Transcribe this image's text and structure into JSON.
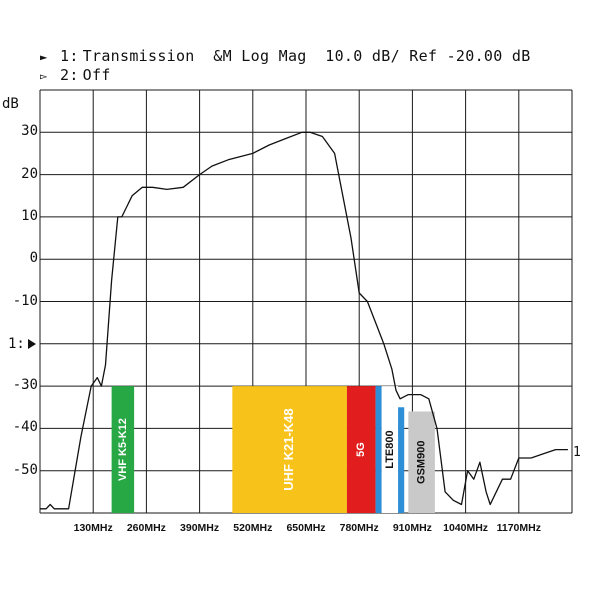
{
  "header": {
    "line1_marker": "►",
    "line1_channel": "1:",
    "line1_text": "Transmission  &M Log Mag  10.0 dB/ Ref -20.00 dB",
    "line2_marker": "▻",
    "line2_channel": "2:",
    "line2_text": "Off"
  },
  "ref_marker_label": "1:",
  "trace_end_label": "1",
  "chart_data": {
    "type": "line",
    "title": "",
    "xlabel": "",
    "ylabel": "dB",
    "xlim": [
      0,
      1300
    ],
    "ylim": [
      -60,
      40
    ],
    "grid": true,
    "y_ticks": [
      30,
      20,
      10,
      0,
      -10,
      -30,
      -40,
      -50
    ],
    "x_ticks": [
      {
        "value": 130,
        "label": "130MHz"
      },
      {
        "value": 260,
        "label": "260MHz"
      },
      {
        "value": 390,
        "label": "390MHz"
      },
      {
        "value": 520,
        "label": "520MHz"
      },
      {
        "value": 650,
        "label": "650MHz"
      },
      {
        "value": 780,
        "label": "780MHz"
      },
      {
        "value": 910,
        "label": "910MHz"
      },
      {
        "value": 1040,
        "label": "1040MHz"
      },
      {
        "value": 1170,
        "label": "1170MHz"
      }
    ],
    "series": [
      {
        "x": [
          0,
          15,
          25,
          35,
          50,
          70,
          100,
          125,
          140,
          150,
          160,
          175,
          190,
          200,
          225,
          250,
          275,
          310,
          350,
          390,
          420,
          460,
          520,
          560,
          600,
          640,
          660,
          690,
          720,
          740,
          760,
          780,
          800,
          820,
          840,
          860,
          870,
          880,
          900,
          930,
          950,
          970,
          990,
          1010,
          1030,
          1045,
          1060,
          1075,
          1090,
          1100,
          1115,
          1130,
          1150,
          1170,
          1200,
          1230,
          1260,
          1290
        ],
        "y": [
          -59,
          -59,
          -58,
          -59,
          -59,
          -59,
          -42,
          -30,
          -28,
          -30,
          -25,
          -5,
          10,
          10,
          15,
          17,
          17,
          16.5,
          17,
          20,
          22,
          23.5,
          25,
          27,
          28.5,
          30,
          30,
          29,
          25,
          15,
          5,
          -8,
          -10,
          -15,
          -20,
          -26,
          -31,
          -33,
          -32,
          -32,
          -33,
          -40,
          -55,
          -57,
          -58,
          -50,
          -52,
          -48,
          -55,
          -58,
          -55,
          -52,
          -52,
          -47,
          -47,
          -46,
          -45,
          -45
        ]
      }
    ],
    "bands": [
      {
        "label": "VHF K5-K12",
        "start": 175,
        "end": 230,
        "top_db": -30,
        "color": "#28a745"
      },
      {
        "label": "UHF K21-K48",
        "start": 470,
        "end": 750,
        "top_db": -30,
        "color": "#f7c21a"
      },
      {
        "label": "5G",
        "start": 750,
        "end": 820,
        "top_db": -30,
        "color": "#e11d1d"
      },
      {
        "label": "",
        "start": 820,
        "end": 835,
        "top_db": -30,
        "color": "#2f8fd6"
      },
      {
        "label": "LTE800",
        "start": 835,
        "end": 875,
        "top_db": -30,
        "color": "#ffffff"
      },
      {
        "label": "",
        "start": 875,
        "end": 890,
        "top_db": -35,
        "color": "#2f8fd6"
      },
      {
        "label": "GSM900",
        "start": 900,
        "end": 965,
        "top_db": -36,
        "color": "#c9c9c9"
      }
    ]
  }
}
